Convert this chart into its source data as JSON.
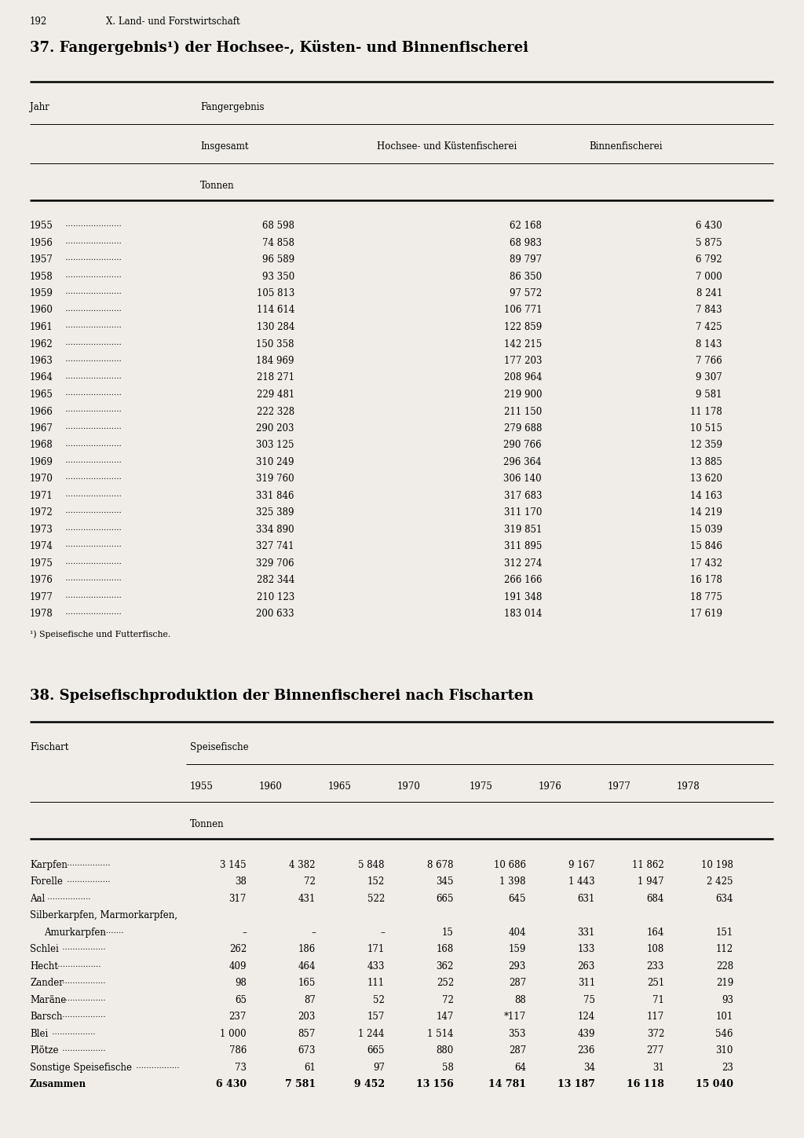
{
  "page_num": "192",
  "page_header": "X. Land- und Forstwirtschaft",
  "table1": {
    "title": "37. Fangergebnis¹) der Hochsee-, Küsten- und Binnenfischerei",
    "col_header_1": "Jahr",
    "col_header_2": "Fangergebnis",
    "col_header_2a": "Insgesamt",
    "col_header_2b": "Hochsee- und Küstenfischerei",
    "col_header_2c": "Binnenfischerei",
    "unit": "Tonnen",
    "footnote": "¹) Speisefische und Futterfische.",
    "rows": [
      [
        "1955",
        "68 598",
        "62 168",
        "6 430"
      ],
      [
        "1956",
        "74 858",
        "68 983",
        "5 875"
      ],
      [
        "1957",
        "96 589",
        "89 797",
        "6 792"
      ],
      [
        "1958",
        "93 350",
        "86 350",
        "7 000"
      ],
      [
        "1959",
        "105 813",
        "97 572",
        "8 241"
      ],
      [
        "1960",
        "114 614",
        "106 771",
        "7 843"
      ],
      [
        "1961",
        "130 284",
        "122 859",
        "7 425"
      ],
      [
        "1962",
        "150 358",
        "142 215",
        "8 143"
      ],
      [
        "1963",
        "184 969",
        "177 203",
        "7 766"
      ],
      [
        "1964",
        "218 271",
        "208 964",
        "9 307"
      ],
      [
        "1965",
        "229 481",
        "219 900",
        "9 581"
      ],
      [
        "1966",
        "222 328",
        "211 150",
        "11 178"
      ],
      [
        "1967",
        "290 203",
        "279 688",
        "10 515"
      ],
      [
        "1968",
        "303 125",
        "290 766",
        "12 359"
      ],
      [
        "1969",
        "310 249",
        "296 364",
        "13 885"
      ],
      [
        "1970",
        "319 760",
        "306 140",
        "13 620"
      ],
      [
        "1971",
        "331 846",
        "317 683",
        "14 163"
      ],
      [
        "1972",
        "325 389",
        "311 170",
        "14 219"
      ],
      [
        "1973",
        "334 890",
        "319 851",
        "15 039"
      ],
      [
        "1974",
        "327 741",
        "311 895",
        "15 846"
      ],
      [
        "1975",
        "329 706",
        "312 274",
        "17 432"
      ],
      [
        "1976",
        "282 344",
        "266 166",
        "16 178"
      ],
      [
        "1977",
        "210 123",
        "191 348",
        "18 775"
      ],
      [
        "1978",
        "200 633",
        "183 014",
        "17 619"
      ]
    ]
  },
  "table2": {
    "title": "38. Speisefischproduktion der Binnenfischerei nach Fischarten",
    "col_header_1": "Fischart",
    "col_header_2": "Speisefische",
    "year_cols": [
      "1955",
      "1960",
      "1965",
      "1970",
      "1975",
      "1976",
      "1977",
      "1978"
    ],
    "unit": "Tonnen",
    "rows": [
      [
        "Karpfen",
        "3 145",
        "4 382",
        "5 848",
        "8 678",
        "10 686",
        "9 167",
        "11 862",
        "10 198"
      ],
      [
        "Forelle",
        "38",
        "72",
        "152",
        "345",
        "1 398",
        "1 443",
        "1 947",
        "2 425"
      ],
      [
        "Aal",
        "317",
        "431",
        "522",
        "665",
        "645",
        "631",
        "684",
        "634"
      ],
      [
        "Silberkarpfen, Marmorkarpfen,",
        "",
        "",
        "",
        "",
        "",
        "",
        "",
        ""
      ],
      [
        "Amurkarpfen",
        "–",
        "–",
        "–",
        "15",
        "404",
        "331",
        "164",
        "151"
      ],
      [
        "Schlei",
        "262",
        "186",
        "171",
        "168",
        "159",
        "133",
        "108",
        "112"
      ],
      [
        "Hecht",
        "409",
        "464",
        "433",
        "362",
        "293",
        "263",
        "233",
        "228"
      ],
      [
        "Zander",
        "98",
        "165",
        "111",
        "252",
        "287",
        "311",
        "251",
        "219"
      ],
      [
        "Maräne",
        "65",
        "87",
        "52",
        "72",
        "88",
        "75",
        "71",
        "93"
      ],
      [
        "Barsch",
        "237",
        "203",
        "157",
        "147",
        "*117",
        "124",
        "117",
        "101"
      ],
      [
        "Blei",
        "1 000",
        "857",
        "1 244",
        "1 514",
        "353",
        "439",
        "372",
        "546"
      ],
      [
        "Plötze",
        "786",
        "673",
        "665",
        "880",
        "287",
        "236",
        "277",
        "310"
      ],
      [
        "Sonstige Speisefische",
        "73",
        "61",
        "97",
        "58",
        "64",
        "34",
        "31",
        "23"
      ]
    ],
    "summary_label": "Zusammen",
    "summary_values": [
      "6 430",
      "7 581",
      "9 452",
      "13 156",
      "14 781",
      "13 187",
      "16 118",
      "15 040"
    ]
  },
  "bg_color": "#f0ede8",
  "text_color": "#000000"
}
